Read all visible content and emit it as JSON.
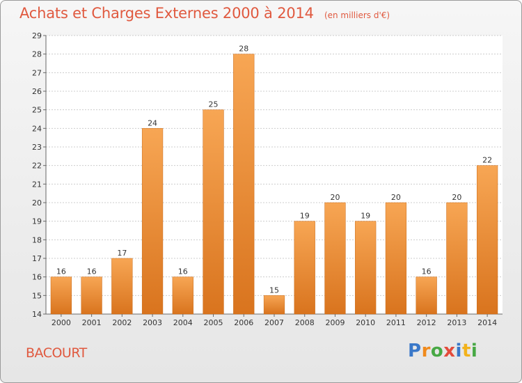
{
  "title": "Achats et Charges Externes 2000 à 2014",
  "subtitle": "(en milliers d'€)",
  "commune": "BACOURT",
  "logo_text": [
    "P",
    "r",
    "o",
    "x",
    "i",
    "t",
    "i"
  ],
  "colors": {
    "title": "#e0593f",
    "bar_top": "#f7a654",
    "bar_bottom": "#d9741e",
    "grid": "#cccccc"
  },
  "chart_data": {
    "type": "bar",
    "categories": [
      "2000",
      "2001",
      "2002",
      "2003",
      "2004",
      "2005",
      "2006",
      "2007",
      "2008",
      "2009",
      "2010",
      "2011",
      "2012",
      "2013",
      "2014"
    ],
    "values": [
      16,
      16,
      17,
      24,
      16,
      25,
      28,
      15,
      19,
      20,
      19,
      20,
      16,
      20,
      22
    ],
    "ylim": [
      14,
      29
    ],
    "yticks": [
      14,
      15,
      16,
      17,
      18,
      19,
      20,
      21,
      22,
      23,
      24,
      25,
      26,
      27,
      28,
      29
    ],
    "grid": true,
    "legend": "none"
  }
}
